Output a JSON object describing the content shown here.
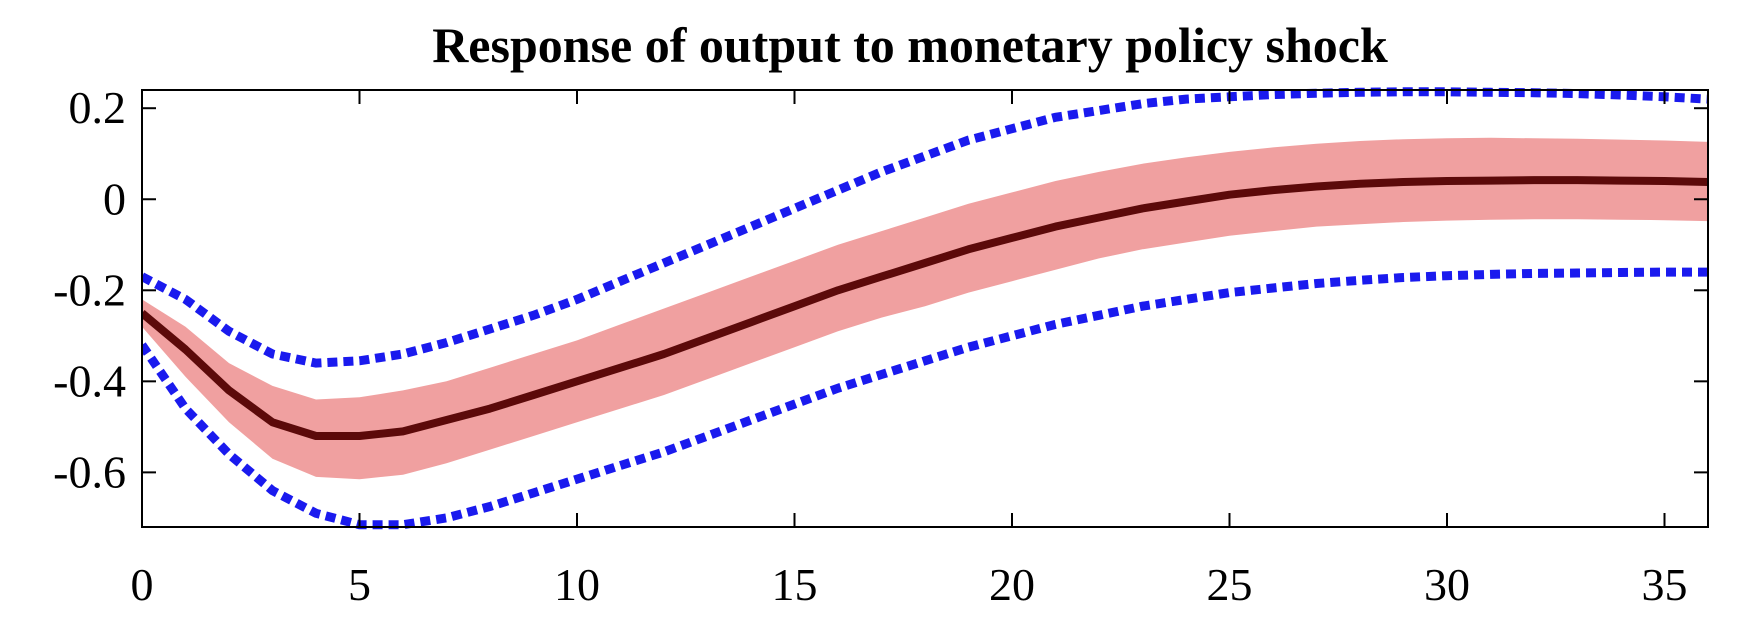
{
  "chart_data": {
    "type": "line",
    "title": "Response of output to monetary policy shock",
    "xlabel": "",
    "ylabel": "",
    "xlim": [
      0,
      36
    ],
    "ylim": [
      -0.72,
      0.24
    ],
    "x_ticks": [
      0,
      5,
      10,
      15,
      20,
      25,
      30,
      35
    ],
    "y_ticks": [
      0.2,
      0,
      -0.2,
      -0.4,
      -0.6
    ],
    "y_tick_labels": [
      "0.2",
      "0",
      "-0.2",
      "-0.4",
      "-0.6"
    ],
    "grid": false,
    "x": [
      0,
      1,
      2,
      3,
      4,
      5,
      6,
      7,
      8,
      9,
      10,
      11,
      12,
      13,
      14,
      15,
      16,
      17,
      18,
      19,
      20,
      21,
      22,
      23,
      24,
      25,
      26,
      27,
      28,
      29,
      30,
      31,
      32,
      33,
      34,
      35,
      36
    ],
    "series": [
      {
        "role": "median",
        "color": "#5c0a0a",
        "values": [
          -0.25,
          -0.33,
          -0.42,
          -0.49,
          -0.52,
          -0.52,
          -0.51,
          -0.485,
          -0.46,
          -0.43,
          -0.4,
          -0.37,
          -0.34,
          -0.305,
          -0.27,
          -0.235,
          -0.2,
          -0.17,
          -0.14,
          -0.11,
          -0.085,
          -0.06,
          -0.04,
          -0.02,
          -0.005,
          0.01,
          0.02,
          0.028,
          0.034,
          0.038,
          0.04,
          0.041,
          0.042,
          0.042,
          0.041,
          0.04,
          0.038
        ]
      },
      {
        "role": "inner-band-upper",
        "color": "#f0a0a0",
        "values": [
          -0.22,
          -0.28,
          -0.36,
          -0.41,
          -0.44,
          -0.435,
          -0.42,
          -0.4,
          -0.37,
          -0.34,
          -0.31,
          -0.275,
          -0.24,
          -0.205,
          -0.17,
          -0.135,
          -0.1,
          -0.07,
          -0.04,
          -0.01,
          0.015,
          0.04,
          0.06,
          0.078,
          0.092,
          0.104,
          0.114,
          0.122,
          0.128,
          0.132,
          0.134,
          0.135,
          0.134,
          0.133,
          0.131,
          0.129,
          0.126
        ]
      },
      {
        "role": "inner-band-lower",
        "color": "#f0a0a0",
        "values": [
          -0.28,
          -0.39,
          -0.49,
          -0.57,
          -0.61,
          -0.615,
          -0.605,
          -0.58,
          -0.55,
          -0.52,
          -0.49,
          -0.46,
          -0.43,
          -0.395,
          -0.36,
          -0.325,
          -0.29,
          -0.26,
          -0.235,
          -0.205,
          -0.18,
          -0.155,
          -0.13,
          -0.11,
          -0.095,
          -0.08,
          -0.07,
          -0.06,
          -0.055,
          -0.05,
          -0.047,
          -0.045,
          -0.044,
          -0.044,
          -0.045,
          -0.046,
          -0.048
        ]
      },
      {
        "role": "outer-band-upper",
        "color": "#1a1aee",
        "values": [
          -0.17,
          -0.22,
          -0.29,
          -0.34,
          -0.36,
          -0.355,
          -0.34,
          -0.315,
          -0.285,
          -0.255,
          -0.22,
          -0.18,
          -0.14,
          -0.1,
          -0.06,
          -0.02,
          0.02,
          0.06,
          0.095,
          0.13,
          0.155,
          0.18,
          0.195,
          0.21,
          0.22,
          0.225,
          0.23,
          0.233,
          0.235,
          0.236,
          0.236,
          0.235,
          0.234,
          0.232,
          0.229,
          0.225,
          0.22
        ]
      },
      {
        "role": "outer-band-lower",
        "color": "#1a1aee",
        "values": [
          -0.32,
          -0.46,
          -0.56,
          -0.64,
          -0.69,
          -0.715,
          -0.715,
          -0.7,
          -0.675,
          -0.645,
          -0.615,
          -0.585,
          -0.555,
          -0.52,
          -0.485,
          -0.45,
          -0.415,
          -0.385,
          -0.355,
          -0.325,
          -0.3,
          -0.275,
          -0.255,
          -0.235,
          -0.22,
          -0.205,
          -0.195,
          -0.185,
          -0.178,
          -0.172,
          -0.168,
          -0.165,
          -0.163,
          -0.162,
          -0.161,
          -0.16,
          -0.16
        ]
      }
    ]
  }
}
